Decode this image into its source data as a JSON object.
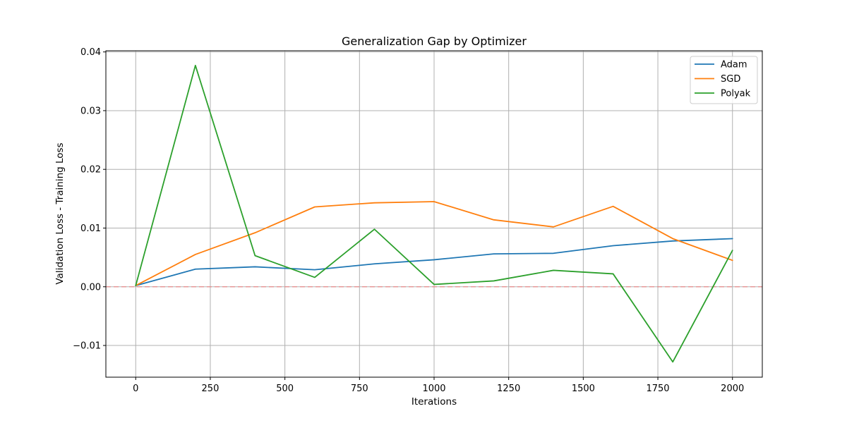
{
  "chart_data": {
    "type": "line",
    "title": "Generalization Gap by Optimizer",
    "xlabel": "Iterations",
    "ylabel": "Validation Loss - Training Loss",
    "xlim": [
      -100,
      2100
    ],
    "ylim": [
      -0.0154,
      0.0402
    ],
    "x_ticks": [
      0,
      250,
      500,
      750,
      1000,
      1250,
      1500,
      1750,
      2000
    ],
    "x_tick_labels": [
      "0",
      "250",
      "500",
      "750",
      "1000",
      "1250",
      "1500",
      "1750",
      "2000"
    ],
    "y_ticks": [
      -0.01,
      0.0,
      0.01,
      0.02,
      0.03,
      0.04
    ],
    "y_tick_labels": [
      "−0.01",
      "0.00",
      "0.01",
      "0.02",
      "0.03",
      "0.04"
    ],
    "grid": true,
    "legend_position": "top-right",
    "reference_line": {
      "y": 0.0,
      "color": "#e88a8a",
      "style": "dashed"
    },
    "x": [
      0,
      200,
      400,
      600,
      800,
      1000,
      1200,
      1400,
      1600,
      1800,
      2000
    ],
    "series": [
      {
        "name": "Adam",
        "color": "#1f77b4",
        "values": [
          0.0002,
          0.003,
          0.0034,
          0.0029,
          0.0039,
          0.0046,
          0.0056,
          0.0057,
          0.007,
          0.0078,
          0.0082
        ]
      },
      {
        "name": "SGD",
        "color": "#ff7f0e",
        "values": [
          0.0002,
          0.0055,
          0.0092,
          0.0136,
          0.0143,
          0.0145,
          0.0114,
          0.0102,
          0.0137,
          0.0082,
          0.0045
        ]
      },
      {
        "name": "Polyak",
        "color": "#2ca02c",
        "values": [
          0.0002,
          0.0377,
          0.0053,
          0.0016,
          0.0098,
          0.0004,
          0.001,
          0.0028,
          0.0022,
          -0.0128,
          0.0062
        ]
      }
    ]
  }
}
